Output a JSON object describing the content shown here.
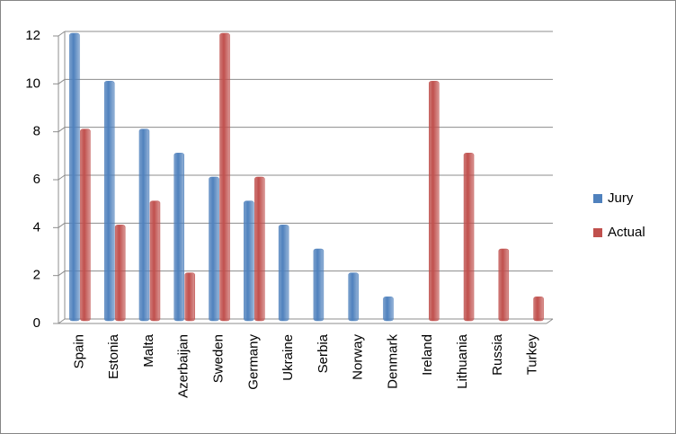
{
  "chart_data": {
    "type": "bar",
    "categories": [
      "Spain",
      "Estonia",
      "Malta",
      "Azerbaijan",
      "Sweden",
      "Germany",
      "Ukraine",
      "Serbia",
      "Norway",
      "Denmark",
      "Ireland",
      "Lithuania",
      "Russia",
      "Turkey"
    ],
    "series": [
      {
        "name": "Jury",
        "color": "#4f81bd",
        "values": [
          12,
          10,
          8,
          7,
          6,
          5,
          4,
          3,
          2,
          1,
          null,
          null,
          null,
          null
        ]
      },
      {
        "name": "Actual",
        "color": "#c0504d",
        "values": [
          8,
          4,
          5,
          2,
          12,
          6,
          null,
          null,
          null,
          null,
          10,
          7,
          3,
          1
        ]
      }
    ],
    "ylim": [
      0,
      12
    ],
    "yticks": [
      0,
      2,
      4,
      6,
      8,
      10,
      12
    ],
    "grid": true,
    "legend": "right"
  }
}
